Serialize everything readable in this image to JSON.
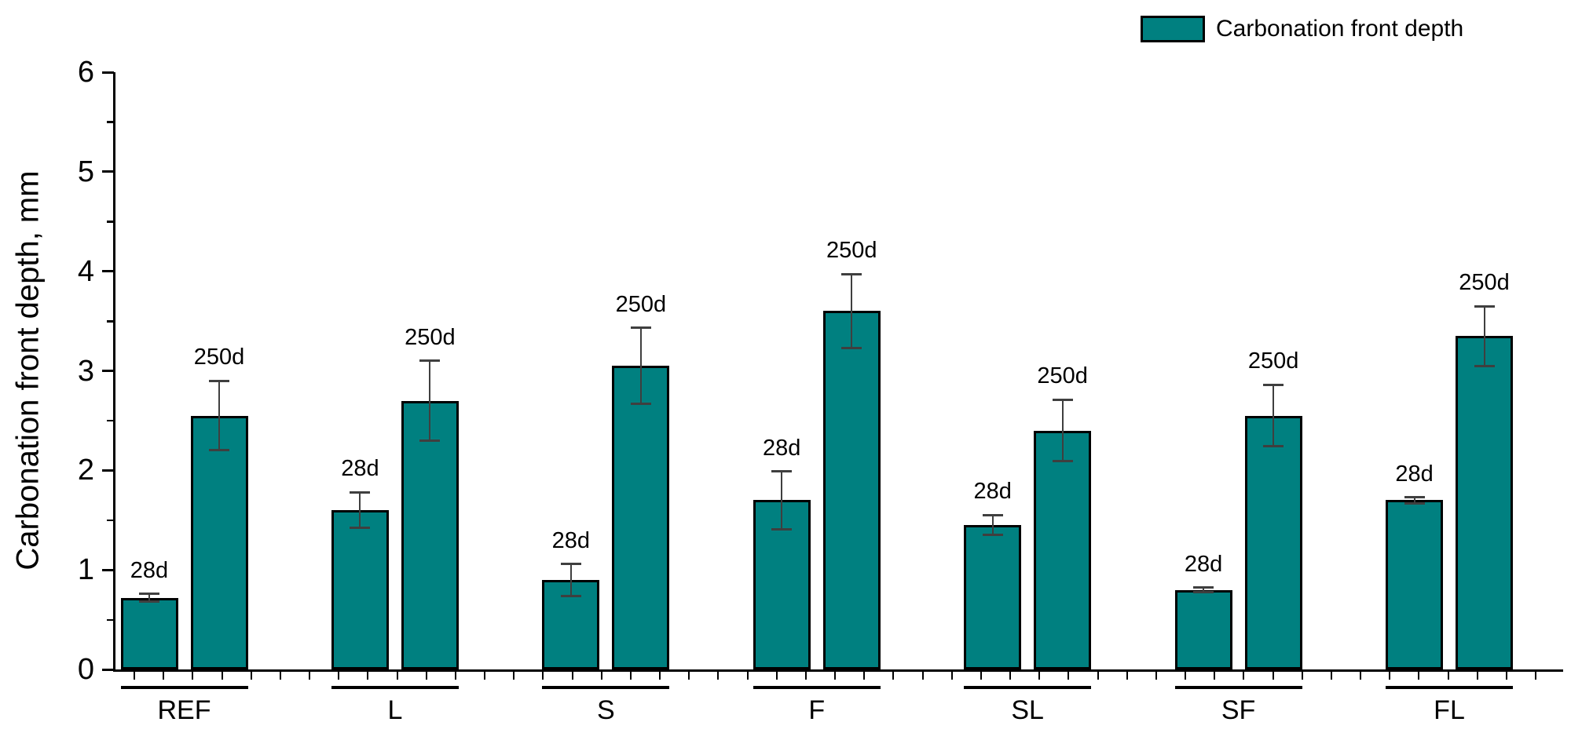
{
  "legend": {
    "label": "Carbonation front depth",
    "swatch_color": "#008080"
  },
  "y_axis": {
    "label": "Carbonation front depth, mm",
    "tick_labels": [
      "0",
      "1",
      "2",
      "3",
      "4",
      "5",
      "6"
    ],
    "min": 0,
    "max": 6,
    "minor_step": 0.5
  },
  "chart_data": {
    "type": "bar",
    "title": "",
    "xlabel": "",
    "ylabel": "Carbonation front depth, mm",
    "ylim": [
      0,
      6
    ],
    "grid": false,
    "legend_position": "top-right",
    "categories": [
      "REF",
      "L",
      "S",
      "F",
      "SL",
      "SF",
      "FL"
    ],
    "bar_color": "#008080",
    "series": [
      {
        "name": "28d",
        "values": [
          0.72,
          1.6,
          0.9,
          1.7,
          1.45,
          0.8,
          1.7
        ],
        "errors": [
          0.04,
          0.18,
          0.16,
          0.29,
          0.1,
          0.02,
          0.03
        ]
      },
      {
        "name": "250d",
        "values": [
          2.55,
          2.7,
          3.05,
          3.6,
          2.4,
          2.55,
          3.35
        ],
        "errors": [
          0.35,
          0.4,
          0.38,
          0.37,
          0.31,
          0.31,
          0.3
        ]
      }
    ]
  }
}
